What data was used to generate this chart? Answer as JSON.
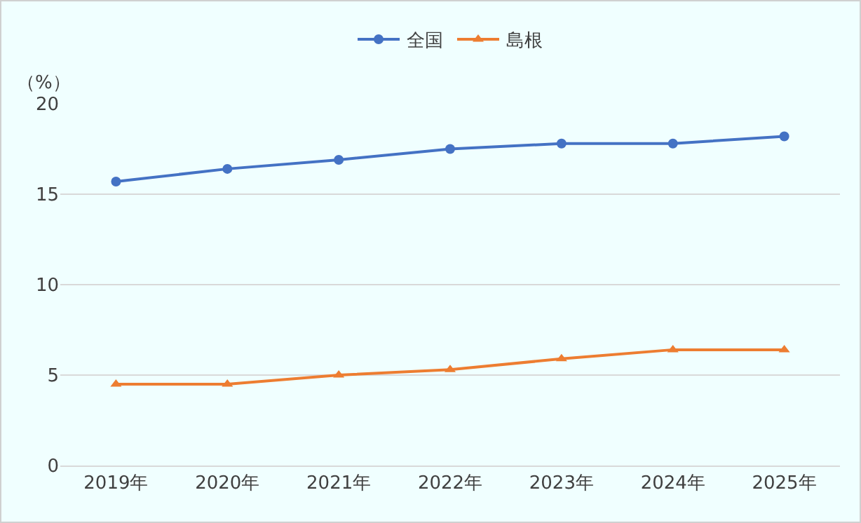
{
  "chart_data": {
    "type": "line",
    "ylabel": "（%）",
    "categories": [
      "2019年",
      "2020年",
      "2021年",
      "2022年",
      "2023年",
      "2024年",
      "2025年"
    ],
    "series": [
      {
        "name": "全国",
        "color": "#4472c4",
        "marker": "circle",
        "values": [
          15.7,
          16.4,
          16.9,
          17.5,
          17.8,
          17.8,
          18.2
        ]
      },
      {
        "name": "島根",
        "color": "#ed7d31",
        "marker": "triangle",
        "values": [
          4.5,
          4.5,
          5.0,
          5.3,
          5.9,
          6.4,
          6.4
        ]
      }
    ],
    "ylim": [
      0,
      20
    ],
    "yticks": [
      0,
      5,
      10,
      15,
      20
    ],
    "grid": "y",
    "legend": "top",
    "line_style": "solid"
  }
}
